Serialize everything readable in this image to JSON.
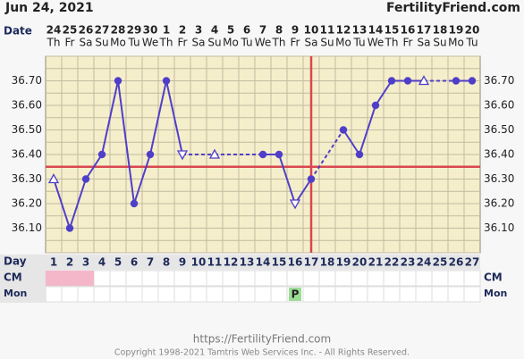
{
  "chart_data": {
    "type": "bbt",
    "title": "Jun 24, 2021",
    "site": "FertilityFriend.com",
    "date_label": "Date",
    "dates": [
      "24",
      "25",
      "26",
      "27",
      "28",
      "29",
      "30",
      "1",
      "2",
      "3",
      "4",
      "5",
      "6",
      "7",
      "8",
      "9",
      "10",
      "11",
      "12",
      "13",
      "14",
      "15",
      "16",
      "17",
      "18",
      "19",
      "20"
    ],
    "weekdays": [
      "Th",
      "Fr",
      "Sa",
      "Su",
      "Mo",
      "Tu",
      "We",
      "Th",
      "Fr",
      "Sa",
      "Su",
      "Mo",
      "Tu",
      "We",
      "Th",
      "Fr",
      "Sa",
      "Su",
      "Mo",
      "Tu",
      "We",
      "Th",
      "Fr",
      "Sa",
      "Su",
      "Mo",
      "Tu"
    ],
    "day_label": "Day",
    "categories": [
      1,
      2,
      3,
      4,
      5,
      6,
      7,
      8,
      9,
      10,
      11,
      12,
      13,
      14,
      15,
      16,
      17,
      18,
      19,
      20,
      21,
      22,
      23,
      24,
      25,
      26,
      27
    ],
    "values": [
      36.3,
      36.1,
      36.3,
      36.4,
      36.7,
      36.2,
      36.4,
      36.7,
      36.4,
      null,
      36.4,
      null,
      null,
      36.4,
      36.4,
      36.2,
      36.3,
      null,
      36.5,
      36.4,
      36.6,
      36.7,
      36.7,
      36.7,
      null,
      36.7,
      36.7
    ],
    "markers": [
      "triangle",
      "dot",
      "dot",
      "dot",
      "dot",
      "dot",
      "dot",
      "dot",
      "triangle-down",
      null,
      "triangle",
      null,
      null,
      "dot",
      "dot",
      "triangle-down",
      "dot",
      null,
      "dot",
      "dot",
      "dot",
      "dot",
      "dot",
      "triangle",
      null,
      "dot",
      "dot"
    ],
    "color": "#4f3fc8",
    "ylim": [
      36.0,
      36.8
    ],
    "yticks": [
      {
        "value": 36.1,
        "label": "36.10"
      },
      {
        "value": 36.2,
        "label": "36.20"
      },
      {
        "value": 36.3,
        "label": "36.30"
      },
      {
        "value": 36.4,
        "label": "36.40"
      },
      {
        "value": 36.5,
        "label": "36.50"
      },
      {
        "value": 36.6,
        "label": "36.60"
      },
      {
        "value": 36.7,
        "label": "36.70"
      }
    ],
    "ygrid": [
      36.0,
      36.05,
      36.1,
      36.15,
      36.2,
      36.25,
      36.3,
      36.35,
      36.4,
      36.45,
      36.5,
      36.55,
      36.6,
      36.65,
      36.7,
      36.75,
      36.8
    ],
    "coverline": 36.35,
    "ovulation_day": 17,
    "reference_color": "#d9474f",
    "cm_label": "CM",
    "cm_days": [
      1,
      2,
      3
    ],
    "cm_color": "#f4b7c9",
    "mon_label": "Mon",
    "mon_marks": [
      {
        "day": 16,
        "label": "P"
      }
    ],
    "mon_color": "#9ddc97",
    "footer_url": "https://FertilityFriend.com",
    "copyright": "Copyright 1998-2021 Tamtris Web Services Inc. - All Rights Reserved."
  }
}
